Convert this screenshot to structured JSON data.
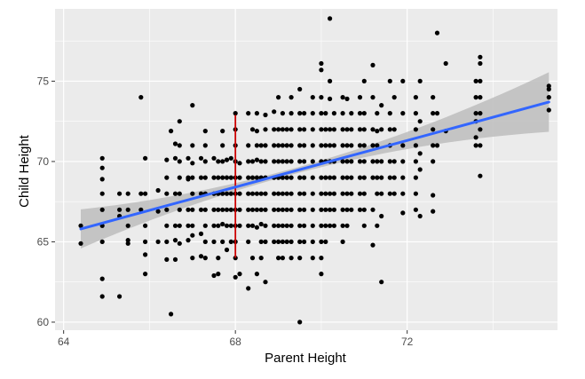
{
  "chart_data": {
    "type": "scatter",
    "xlabel": "Parent Height",
    "ylabel": "Child Height",
    "xlim": [
      63.8,
      75.5
    ],
    "ylim": [
      59.5,
      79.5
    ],
    "x_ticks": [
      64,
      68,
      72
    ],
    "x_tick_labels": [
      "64",
      "68",
      "72"
    ],
    "y_ticks": [
      60,
      65,
      70,
      75
    ],
    "y_tick_labels": [
      "60",
      "65",
      "70",
      "75"
    ],
    "grid": true,
    "background": "#ebebeb",
    "point_color": "#000000",
    "fit_line": {
      "method": "linear",
      "x": [
        64.4,
        75.3
      ],
      "y": [
        65.8,
        73.7
      ],
      "color": "#3366ff",
      "confidence_band": true,
      "band_color": "#bdbdbd"
    },
    "reference_line": {
      "orientation": "vertical",
      "x": 68,
      "y_range": [
        64.0,
        72.9
      ],
      "color": "#cc0000"
    },
    "points": [
      [
        64.4,
        66.0
      ],
      [
        64.4,
        64.9
      ],
      [
        64.9,
        70.2
      ],
      [
        64.9,
        69.6
      ],
      [
        64.9,
        68.9
      ],
      [
        64.9,
        68.0
      ],
      [
        64.9,
        67.0
      ],
      [
        64.9,
        66.0
      ],
      [
        64.9,
        65.0
      ],
      [
        64.9,
        62.7
      ],
      [
        64.9,
        61.6
      ],
      [
        65.3,
        68.0
      ],
      [
        65.3,
        67.0
      ],
      [
        65.3,
        66.6
      ],
      [
        65.3,
        61.6
      ],
      [
        65.5,
        68.0
      ],
      [
        65.5,
        67.0
      ],
      [
        65.5,
        66.0
      ],
      [
        65.5,
        65.1
      ],
      [
        65.5,
        64.9
      ],
      [
        65.8,
        74.0
      ],
      [
        65.8,
        68.0
      ],
      [
        65.8,
        67.0
      ],
      [
        65.9,
        70.2
      ],
      [
        65.9,
        68.0
      ],
      [
        65.9,
        66.0
      ],
      [
        65.9,
        65.0
      ],
      [
        65.9,
        64.2
      ],
      [
        65.9,
        63.0
      ],
      [
        66.2,
        68.2
      ],
      [
        66.2,
        66.9
      ],
      [
        66.2,
        65.0
      ],
      [
        66.4,
        70.1
      ],
      [
        66.4,
        69.0
      ],
      [
        66.4,
        68.0
      ],
      [
        66.4,
        67.0
      ],
      [
        66.4,
        66.0
      ],
      [
        66.4,
        65.0
      ],
      [
        66.4,
        63.9
      ],
      [
        66.5,
        71.9
      ],
      [
        66.5,
        60.5
      ],
      [
        66.6,
        71.1
      ],
      [
        66.6,
        70.2
      ],
      [
        66.6,
        68.0
      ],
      [
        66.6,
        66.0
      ],
      [
        66.6,
        65.1
      ],
      [
        66.6,
        63.9
      ],
      [
        66.7,
        72.5
      ],
      [
        66.7,
        71.0
      ],
      [
        66.7,
        70.0
      ],
      [
        66.7,
        69.0
      ],
      [
        66.7,
        68.0
      ],
      [
        66.7,
        67.0
      ],
      [
        66.7,
        66.0
      ],
      [
        66.7,
        64.9
      ],
      [
        66.9,
        70.2
      ],
      [
        66.9,
        69.0
      ],
      [
        66.9,
        68.9
      ],
      [
        66.9,
        67.0
      ],
      [
        66.9,
        66.0
      ],
      [
        66.9,
        65.1
      ],
      [
        67.0,
        73.5
      ],
      [
        67.0,
        71.0
      ],
      [
        67.0,
        69.9
      ],
      [
        67.0,
        69.0
      ],
      [
        67.0,
        68.0
      ],
      [
        67.0,
        67.0
      ],
      [
        67.0,
        66.0
      ],
      [
        67.0,
        65.4
      ],
      [
        67.0,
        64.0
      ],
      [
        67.2,
        70.2
      ],
      [
        67.2,
        69.0
      ],
      [
        67.2,
        68.0
      ],
      [
        67.2,
        67.0
      ],
      [
        67.2,
        65.5
      ],
      [
        67.2,
        64.1
      ],
      [
        67.3,
        71.9
      ],
      [
        67.3,
        71.0
      ],
      [
        67.3,
        70.0
      ],
      [
        67.3,
        69.0
      ],
      [
        67.3,
        68.0
      ],
      [
        67.3,
        67.0
      ],
      [
        67.3,
        66.0
      ],
      [
        67.3,
        65.0
      ],
      [
        67.3,
        64.0
      ],
      [
        67.5,
        70.2
      ],
      [
        67.5,
        69.0
      ],
      [
        67.5,
        68.0
      ],
      [
        67.5,
        67.0
      ],
      [
        67.5,
        66.0
      ],
      [
        67.5,
        65.0
      ],
      [
        67.5,
        62.9
      ],
      [
        67.6,
        70.0
      ],
      [
        67.6,
        69.0
      ],
      [
        67.6,
        68.0
      ],
      [
        67.6,
        67.0
      ],
      [
        67.6,
        66.0
      ],
      [
        67.6,
        64.0
      ],
      [
        67.6,
        63.0
      ],
      [
        67.7,
        71.9
      ],
      [
        67.7,
        71.0
      ],
      [
        67.7,
        70.0
      ],
      [
        67.7,
        69.0
      ],
      [
        67.7,
        68.0
      ],
      [
        67.7,
        67.0
      ],
      [
        67.7,
        66.1
      ],
      [
        67.7,
        65.0
      ],
      [
        67.8,
        70.1
      ],
      [
        67.8,
        69.0
      ],
      [
        67.8,
        68.0
      ],
      [
        67.8,
        67.0
      ],
      [
        67.8,
        66.0
      ],
      [
        67.8,
        64.5
      ],
      [
        67.9,
        70.2
      ],
      [
        67.9,
        69.0
      ],
      [
        67.9,
        68.0
      ],
      [
        67.9,
        67.0
      ],
      [
        67.9,
        66.0
      ],
      [
        67.9,
        65.0
      ],
      [
        68.0,
        73.0
      ],
      [
        68.0,
        72.0
      ],
      [
        68.0,
        71.0
      ],
      [
        68.0,
        70.0
      ],
      [
        68.0,
        69.0
      ],
      [
        68.0,
        68.0
      ],
      [
        68.0,
        67.0
      ],
      [
        68.0,
        66.0
      ],
      [
        68.0,
        65.0
      ],
      [
        68.0,
        64.0
      ],
      [
        68.0,
        62.8
      ],
      [
        68.1,
        69.9
      ],
      [
        68.1,
        69.0
      ],
      [
        68.1,
        68.0
      ],
      [
        68.1,
        67.0
      ],
      [
        68.1,
        66.0
      ],
      [
        68.1,
        63.0
      ],
      [
        68.3,
        73.0
      ],
      [
        68.3,
        71.0
      ],
      [
        68.3,
        70.0
      ],
      [
        68.3,
        69.0
      ],
      [
        68.3,
        68.0
      ],
      [
        68.3,
        67.0
      ],
      [
        68.3,
        66.0
      ],
      [
        68.3,
        65.0
      ],
      [
        68.3,
        62.1
      ],
      [
        68.4,
        72.0
      ],
      [
        68.4,
        70.0
      ],
      [
        68.4,
        69.0
      ],
      [
        68.4,
        68.0
      ],
      [
        68.4,
        67.0
      ],
      [
        68.4,
        66.0
      ],
      [
        68.4,
        64.0
      ],
      [
        68.5,
        73.0
      ],
      [
        68.5,
        71.9
      ],
      [
        68.5,
        71.0
      ],
      [
        68.5,
        70.1
      ],
      [
        68.5,
        69.0
      ],
      [
        68.5,
        68.0
      ],
      [
        68.5,
        67.0
      ],
      [
        68.5,
        65.9
      ],
      [
        68.5,
        63.0
      ],
      [
        68.6,
        71.0
      ],
      [
        68.6,
        70.0
      ],
      [
        68.6,
        69.0
      ],
      [
        68.6,
        68.0
      ],
      [
        68.6,
        67.0
      ],
      [
        68.6,
        66.1
      ],
      [
        68.6,
        65.0
      ],
      [
        68.6,
        64.0
      ],
      [
        68.7,
        72.9
      ],
      [
        68.7,
        72.0
      ],
      [
        68.7,
        71.0
      ],
      [
        68.7,
        70.0
      ],
      [
        68.7,
        69.0
      ],
      [
        68.7,
        68.0
      ],
      [
        68.7,
        67.0
      ],
      [
        68.7,
        66.0
      ],
      [
        68.7,
        65.0
      ],
      [
        68.7,
        62.5
      ],
      [
        68.9,
        73.1
      ],
      [
        68.9,
        72.0
      ],
      [
        68.9,
        71.0
      ],
      [
        68.9,
        70.0
      ],
      [
        68.9,
        69.0
      ],
      [
        68.9,
        68.0
      ],
      [
        68.9,
        67.0
      ],
      [
        68.9,
        66.0
      ],
      [
        68.9,
        65.0
      ],
      [
        69.0,
        74.0
      ],
      [
        69.0,
        72.0
      ],
      [
        69.0,
        71.0
      ],
      [
        69.0,
        70.0
      ],
      [
        69.0,
        69.0
      ],
      [
        69.0,
        68.0
      ],
      [
        69.0,
        67.0
      ],
      [
        69.0,
        66.0
      ],
      [
        69.0,
        65.0
      ],
      [
        69.0,
        64.0
      ],
      [
        69.1,
        73.0
      ],
      [
        69.1,
        72.0
      ],
      [
        69.1,
        71.0
      ],
      [
        69.1,
        70.0
      ],
      [
        69.1,
        69.0
      ],
      [
        69.1,
        68.0
      ],
      [
        69.1,
        67.0
      ],
      [
        69.1,
        66.0
      ],
      [
        69.1,
        65.0
      ],
      [
        69.1,
        64.0
      ],
      [
        69.2,
        72.0
      ],
      [
        69.2,
        71.0
      ],
      [
        69.2,
        70.0
      ],
      [
        69.2,
        69.0
      ],
      [
        69.2,
        68.0
      ],
      [
        69.2,
        67.0
      ],
      [
        69.2,
        66.0
      ],
      [
        69.2,
        65.0
      ],
      [
        69.3,
        74.0
      ],
      [
        69.3,
        73.0
      ],
      [
        69.3,
        72.0
      ],
      [
        69.3,
        71.0
      ],
      [
        69.3,
        70.0
      ],
      [
        69.3,
        69.0
      ],
      [
        69.3,
        68.0
      ],
      [
        69.3,
        67.0
      ],
      [
        69.3,
        66.0
      ],
      [
        69.3,
        65.0
      ],
      [
        69.3,
        64.0
      ],
      [
        69.5,
        74.5
      ],
      [
        69.5,
        73.0
      ],
      [
        69.5,
        72.0
      ],
      [
        69.5,
        71.0
      ],
      [
        69.5,
        70.0
      ],
      [
        69.5,
        69.0
      ],
      [
        69.5,
        68.0
      ],
      [
        69.5,
        67.0
      ],
      [
        69.5,
        66.0
      ],
      [
        69.5,
        65.0
      ],
      [
        69.5,
        64.0
      ],
      [
        69.5,
        60.0
      ],
      [
        69.6,
        73.0
      ],
      [
        69.6,
        72.0
      ],
      [
        69.6,
        71.0
      ],
      [
        69.6,
        70.0
      ],
      [
        69.6,
        69.0
      ],
      [
        69.6,
        68.0
      ],
      [
        69.6,
        67.0
      ],
      [
        69.6,
        66.0
      ],
      [
        69.6,
        65.0
      ],
      [
        69.8,
        74.0
      ],
      [
        69.8,
        73.0
      ],
      [
        69.8,
        72.0
      ],
      [
        69.8,
        71.0
      ],
      [
        69.8,
        70.0
      ],
      [
        69.8,
        69.0
      ],
      [
        69.8,
        68.0
      ],
      [
        69.8,
        67.0
      ],
      [
        69.8,
        66.0
      ],
      [
        69.8,
        65.0
      ],
      [
        69.8,
        64.0
      ],
      [
        70.0,
        76.1
      ],
      [
        70.0,
        75.7
      ],
      [
        70.0,
        74.0
      ],
      [
        70.0,
        73.0
      ],
      [
        70.0,
        72.0
      ],
      [
        70.0,
        71.0
      ],
      [
        70.0,
        70.0
      ],
      [
        70.0,
        69.0
      ],
      [
        70.0,
        68.0
      ],
      [
        70.0,
        67.0
      ],
      [
        70.0,
        66.0
      ],
      [
        70.0,
        65.0
      ],
      [
        70.0,
        64.0
      ],
      [
        70.0,
        63.0
      ],
      [
        70.1,
        73.0
      ],
      [
        70.1,
        72.0
      ],
      [
        70.1,
        71.0
      ],
      [
        70.1,
        70.0
      ],
      [
        70.1,
        69.0
      ],
      [
        70.1,
        68.0
      ],
      [
        70.1,
        67.0
      ],
      [
        70.1,
        66.0
      ],
      [
        70.1,
        65.0
      ],
      [
        70.2,
        78.9
      ],
      [
        70.2,
        75.0
      ],
      [
        70.2,
        73.9
      ],
      [
        70.2,
        72.0
      ],
      [
        70.2,
        71.0
      ],
      [
        70.2,
        70.0
      ],
      [
        70.2,
        69.0
      ],
      [
        70.2,
        68.0
      ],
      [
        70.2,
        67.0
      ],
      [
        70.2,
        66.0
      ],
      [
        70.3,
        73.0
      ],
      [
        70.3,
        72.0
      ],
      [
        70.3,
        71.0
      ],
      [
        70.3,
        70.0
      ],
      [
        70.3,
        69.0
      ],
      [
        70.3,
        68.0
      ],
      [
        70.3,
        67.0
      ],
      [
        70.3,
        66.0
      ],
      [
        70.5,
        74.0
      ],
      [
        70.5,
        73.0
      ],
      [
        70.5,
        72.0
      ],
      [
        70.5,
        71.0
      ],
      [
        70.5,
        70.0
      ],
      [
        70.5,
        69.0
      ],
      [
        70.5,
        68.0
      ],
      [
        70.5,
        67.0
      ],
      [
        70.5,
        66.0
      ],
      [
        70.5,
        65.0
      ],
      [
        70.6,
        73.9
      ],
      [
        70.6,
        72.0
      ],
      [
        70.6,
        71.0
      ],
      [
        70.6,
        70.0
      ],
      [
        70.6,
        69.0
      ],
      [
        70.6,
        68.0
      ],
      [
        70.6,
        67.0
      ],
      [
        70.6,
        66.0
      ],
      [
        70.7,
        73.0
      ],
      [
        70.7,
        72.0
      ],
      [
        70.7,
        71.0
      ],
      [
        70.7,
        70.0
      ],
      [
        70.7,
        69.0
      ],
      [
        70.7,
        68.0
      ],
      [
        70.7,
        67.0
      ],
      [
        70.9,
        74.0
      ],
      [
        70.9,
        73.0
      ],
      [
        70.9,
        72.0
      ],
      [
        70.9,
        71.0
      ],
      [
        70.9,
        70.0
      ],
      [
        70.9,
        69.0
      ],
      [
        70.9,
        68.0
      ],
      [
        70.9,
        67.0
      ],
      [
        71.0,
        75.0
      ],
      [
        71.0,
        73.0
      ],
      [
        71.0,
        72.0
      ],
      [
        71.0,
        71.0
      ],
      [
        71.0,
        70.0
      ],
      [
        71.0,
        69.0
      ],
      [
        71.0,
        68.0
      ],
      [
        71.0,
        67.0
      ],
      [
        71.0,
        66.0
      ],
      [
        71.2,
        76.0
      ],
      [
        71.2,
        74.0
      ],
      [
        71.2,
        72.0
      ],
      [
        71.2,
        71.0
      ],
      [
        71.2,
        70.0
      ],
      [
        71.2,
        69.0
      ],
      [
        71.2,
        67.0
      ],
      [
        71.2,
        64.8
      ],
      [
        71.3,
        73.0
      ],
      [
        71.3,
        71.9
      ],
      [
        71.3,
        71.0
      ],
      [
        71.3,
        70.0
      ],
      [
        71.3,
        69.0
      ],
      [
        71.3,
        68.0
      ],
      [
        71.3,
        66.0
      ],
      [
        71.4,
        73.5
      ],
      [
        71.4,
        72.0
      ],
      [
        71.4,
        70.0
      ],
      [
        71.4,
        69.0
      ],
      [
        71.4,
        68.0
      ],
      [
        71.4,
        66.6
      ],
      [
        71.4,
        62.5
      ],
      [
        71.6,
        75.0
      ],
      [
        71.6,
        73.0
      ],
      [
        71.6,
        72.0
      ],
      [
        71.6,
        71.0
      ],
      [
        71.6,
        70.0
      ],
      [
        71.6,
        69.0
      ],
      [
        71.6,
        68.0
      ],
      [
        71.7,
        74.0
      ],
      [
        71.7,
        72.0
      ],
      [
        71.7,
        70.0
      ],
      [
        71.7,
        69.0
      ],
      [
        71.7,
        68.0
      ],
      [
        71.9,
        75.0
      ],
      [
        71.9,
        73.0
      ],
      [
        71.9,
        71.0
      ],
      [
        71.9,
        70.0
      ],
      [
        71.9,
        69.0
      ],
      [
        71.9,
        68.0
      ],
      [
        71.9,
        66.8
      ],
      [
        72.2,
        74.0
      ],
      [
        72.2,
        73.0
      ],
      [
        72.2,
        72.0
      ],
      [
        72.2,
        71.0
      ],
      [
        72.2,
        70.0
      ],
      [
        72.2,
        69.0
      ],
      [
        72.2,
        68.0
      ],
      [
        72.2,
        67.0
      ],
      [
        72.3,
        75.0
      ],
      [
        72.3,
        72.5
      ],
      [
        72.3,
        70.5
      ],
      [
        72.3,
        69.5
      ],
      [
        72.3,
        66.6
      ],
      [
        72.6,
        74.0
      ],
      [
        72.6,
        73.0
      ],
      [
        72.6,
        72.0
      ],
      [
        72.6,
        71.0
      ],
      [
        72.6,
        70.0
      ],
      [
        72.6,
        67.9
      ],
      [
        72.6,
        66.9
      ],
      [
        72.7,
        78.0
      ],
      [
        72.7,
        73.0
      ],
      [
        72.7,
        71.0
      ],
      [
        72.9,
        76.1
      ],
      [
        72.9,
        71.9
      ],
      [
        73.6,
        75.0
      ],
      [
        73.6,
        74.0
      ],
      [
        73.6,
        73.0
      ],
      [
        73.6,
        72.5
      ],
      [
        73.6,
        71.5
      ],
      [
        73.6,
        71.0
      ],
      [
        73.7,
        76.5
      ],
      [
        73.7,
        76.1
      ],
      [
        73.7,
        75.0
      ],
      [
        73.7,
        74.0
      ],
      [
        73.7,
        73.0
      ],
      [
        73.7,
        72.0
      ],
      [
        73.7,
        71.0
      ],
      [
        73.7,
        69.1
      ],
      [
        75.3,
        74.7
      ],
      [
        75.3,
        74.5
      ],
      [
        75.3,
        74.0
      ],
      [
        75.3,
        73.2
      ]
    ]
  }
}
